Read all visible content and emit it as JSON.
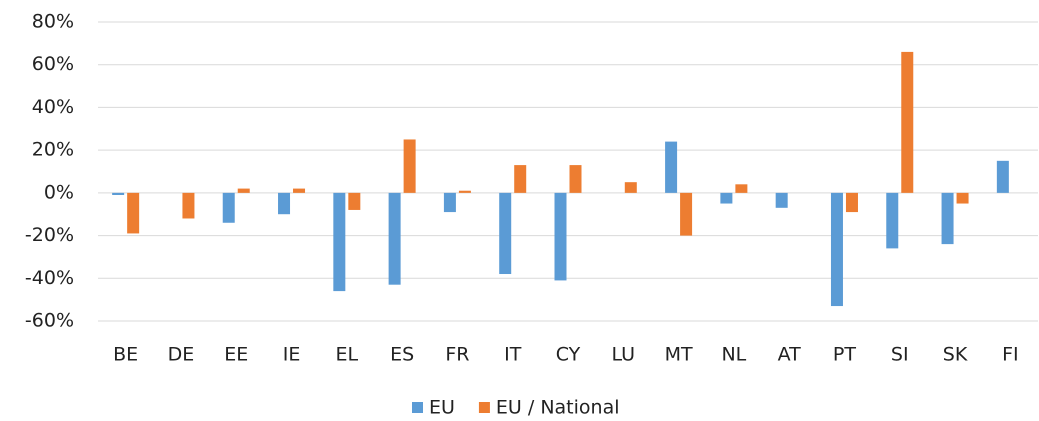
{
  "chart_data": {
    "type": "bar",
    "categories": [
      "BE",
      "DE",
      "EE",
      "IE",
      "EL",
      "ES",
      "FR",
      "IT",
      "CY",
      "LU",
      "MT",
      "NL",
      "AT",
      "PT",
      "SI",
      "SK",
      "FI"
    ],
    "series": [
      {
        "name": "EU",
        "color": "#5b9bd5",
        "values": [
          -1,
          0,
          -14,
          -10,
          -46,
          -43,
          -9,
          -38,
          -41,
          0,
          24,
          -5,
          -7,
          -53,
          -26,
          -24,
          15
        ]
      },
      {
        "name": "EU / National",
        "color": "#ed7d31",
        "values": [
          -19,
          -12,
          2,
          2,
          -8,
          25,
          1,
          13,
          13,
          5,
          -20,
          4,
          0,
          -9,
          66,
          -5,
          0
        ]
      }
    ],
    "ylim": [
      -60,
      80
    ],
    "yticks": [
      {
        "value": -60,
        "label": "-60%"
      },
      {
        "value": -40,
        "label": "-40%"
      },
      {
        "value": -20,
        "label": "-20%"
      },
      {
        "value": 0,
        "label": "0%"
      },
      {
        "value": 20,
        "label": "20%"
      },
      {
        "value": 40,
        "label": "40%"
      },
      {
        "value": 60,
        "label": "60%"
      },
      {
        "value": 80,
        "label": "80%"
      }
    ],
    "grid": true,
    "legend": "bottom"
  }
}
